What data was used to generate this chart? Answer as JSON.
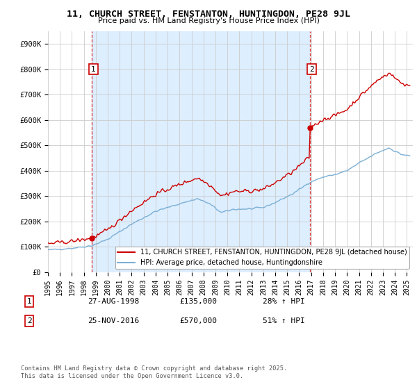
{
  "title": "11, CHURCH STREET, FENSTANTON, HUNTINGDON, PE28 9JL",
  "subtitle": "Price paid vs. HM Land Registry's House Price Index (HPI)",
  "red_label": "11, CHURCH STREET, FENSTANTON, HUNTINGDON, PE28 9JL (detached house)",
  "blue_label": "HPI: Average price, detached house, Huntingdonshire",
  "sale1_date": "27-AUG-1998",
  "sale1_price": 135000,
  "sale1_hpi": "28% ↑ HPI",
  "sale2_date": "25-NOV-2016",
  "sale2_price": 570000,
  "sale2_hpi": "51% ↑ HPI",
  "copyright": "Contains HM Land Registry data © Crown copyright and database right 2025.\nThis data is licensed under the Open Government Licence v3.0.",
  "red_color": "#cc0000",
  "blue_color": "#7bafd4",
  "dashed_color": "#cc0000",
  "grid_color": "#cccccc",
  "bg_color": "#ffffff",
  "fill_color": "#ddeeff",
  "ylim_max": 950000,
  "ylim_min": 0,
  "sale1_x": 1998.65,
  "sale2_x": 2016.9
}
